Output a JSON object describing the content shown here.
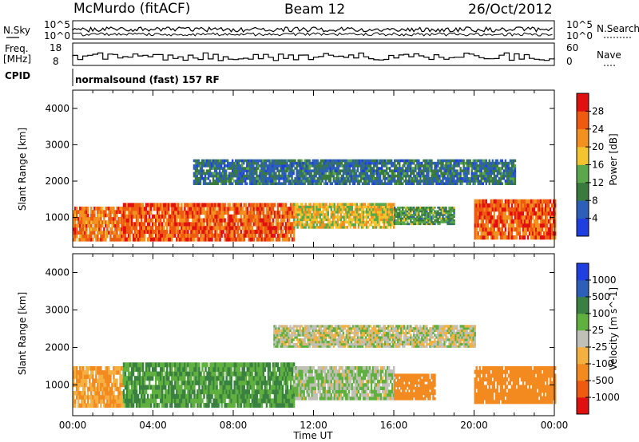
{
  "header": {
    "station": "McMurdo (fitACF)",
    "beam": "Beam 12",
    "date": "26/Oct/2012"
  },
  "noise_panel": {
    "left_label": "N.Sky",
    "right_label": "N.Search",
    "left_ticks": [
      "10^5",
      "10^0"
    ],
    "right_ticks": [
      "10^5",
      "10^0"
    ]
  },
  "freq_panel": {
    "left_label_line1": "Freq.",
    "left_label_line2": "[MHz]",
    "right_label": "Nave",
    "left_ticks": [
      "18",
      "8"
    ],
    "right_ticks": [
      "60",
      "0"
    ]
  },
  "cpid": {
    "label": "CPID",
    "text": "normalsound (fast) 157 RF"
  },
  "axes": {
    "ylabel": "Slant Range [km]",
    "xlabel": "Time UT",
    "y_ticks": [
      "1000",
      "2000",
      "3000",
      "4000"
    ],
    "x_ticks": [
      "00:00",
      "04:00",
      "08:00",
      "12:00",
      "16:00",
      "20:00",
      "00:00"
    ]
  },
  "colors": {
    "power": [
      "#1f3fe0",
      "#2c5fb8",
      "#3a7a3c",
      "#5aa84a",
      "#f4c430",
      "#f29020",
      "#ee5a10",
      "#e01010"
    ],
    "velocity": [
      "#e01010",
      "#ee5a10",
      "#f28a20",
      "#f4b040",
      "#c0c0b8",
      "#60b040",
      "#3a8040",
      "#2c5fb8",
      "#1f3fe0"
    ]
  },
  "chart_data": [
    {
      "type": "heatmap",
      "title": "Power [dB]",
      "xlabel": "Time UT",
      "ylabel": "Slant Range [km]",
      "xlim": [
        "00:00",
        "24:00"
      ],
      "ylim": [
        180,
        4500
      ],
      "colorbar_label": "Power [dB]",
      "colorbar_ticks": [
        "4",
        "8",
        "12",
        "16",
        "20",
        "24",
        "28"
      ],
      "colorbar_range": [
        0,
        32
      ],
      "bands": [
        {
          "x": [
            "00:00",
            "02:30"
          ],
          "range_km": [
            350,
            1300
          ],
          "power_db": 24
        },
        {
          "x": [
            "02:30",
            "11:00"
          ],
          "range_km": [
            350,
            1400
          ],
          "power_db": 26
        },
        {
          "x": [
            "11:00",
            "16:00"
          ],
          "range_km": [
            700,
            1400
          ],
          "power_db": 18
        },
        {
          "x": [
            "16:00",
            "19:00"
          ],
          "range_km": [
            800,
            1300
          ],
          "power_db": 12
        },
        {
          "x": [
            "20:00",
            "24:00"
          ],
          "range_km": [
            400,
            1500
          ],
          "power_db": 26
        },
        {
          "x": [
            "06:00",
            "22:00"
          ],
          "range_km": [
            1900,
            2600
          ],
          "power_db": 8
        }
      ]
    },
    {
      "type": "heatmap",
      "title": "Velocity [m s^-1]",
      "xlabel": "Time UT",
      "ylabel": "Slant Range [km]",
      "xlim": [
        "00:00",
        "24:00"
      ],
      "ylim": [
        180,
        4500
      ],
      "colorbar_label": "Velocity [m s^-1]",
      "colorbar_ticks": [
        "1000",
        "500",
        "100",
        "25",
        "-25",
        "-100",
        "-500",
        "-1000"
      ],
      "bands": [
        {
          "x": [
            "00:00",
            "02:30"
          ],
          "range_km": [
            400,
            1500
          ],
          "velocity": -100
        },
        {
          "x": [
            "02:30",
            "11:00"
          ],
          "range_km": [
            400,
            1600
          ],
          "velocity": 100
        },
        {
          "x": [
            "11:00",
            "16:00"
          ],
          "range_km": [
            600,
            1500
          ],
          "velocity": 25
        },
        {
          "x": [
            "16:00",
            "18:00"
          ],
          "range_km": [
            600,
            1300
          ],
          "velocity": -300
        },
        {
          "x": [
            "20:00",
            "24:00"
          ],
          "range_km": [
            500,
            1500
          ],
          "velocity": -300
        },
        {
          "x": [
            "10:00",
            "20:00"
          ],
          "range_km": [
            2000,
            2600
          ],
          "velocity": 0
        }
      ]
    }
  ]
}
